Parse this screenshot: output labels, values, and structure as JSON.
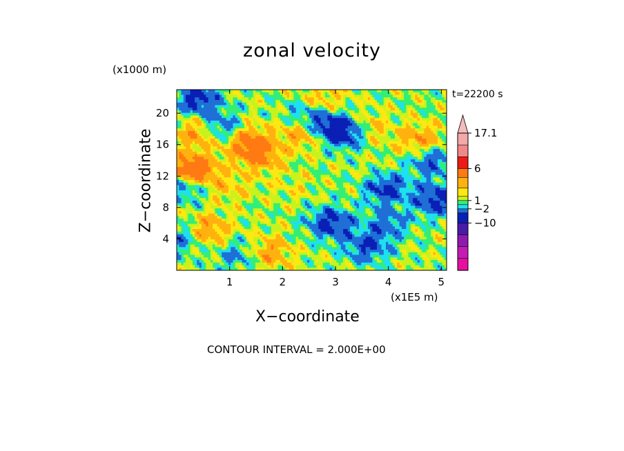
{
  "chart_data": {
    "type": "heatmap",
    "title": "zonal velocity",
    "xlabel": "X−coordinate",
    "ylabel": "Z−coordinate",
    "x_unit": "(x1E5 m)",
    "y_unit": "(x1000 m)",
    "annotation": "t=22200 s",
    "footer": "CONTOUR INTERVAL = 2.000E+00",
    "xlim": [
      0,
      5.1
    ],
    "ylim": [
      0,
      23
    ],
    "x_ticks": [
      1,
      2,
      3,
      4,
      5
    ],
    "x_tick_labels": [
      "1",
      "2",
      "3",
      "4",
      "5"
    ],
    "y_ticks": [
      4,
      8,
      12,
      16,
      20
    ],
    "y_tick_labels": [
      "4",
      "8",
      "12",
      "16",
      "20"
    ],
    "colorbar": {
      "levels": [
        -18,
        -14,
        -10,
        -6,
        -2,
        0,
        1,
        2,
        3,
        4,
        6,
        10,
        14,
        17.1
      ],
      "labels": [
        {
          "value": 17.1,
          "text": "17.1"
        },
        {
          "value": 6,
          "text": "6"
        },
        {
          "value": 1,
          "text": "1"
        },
        {
          "value": -2,
          "text": "−2"
        },
        {
          "value": -10,
          "text": "−10"
        }
      ],
      "colors": [
        "#e60fa0",
        "#c31bb3",
        "#8f1aae",
        "#4a1aa8",
        "#0a1fb5",
        "#1f6fd6",
        "#1ee0ef",
        "#33ee77",
        "#c8f21e",
        "#ffe812",
        "#ffb20f",
        "#ff7a12",
        "#ee1a14",
        "#f08888",
        "#f4a8a8"
      ]
    },
    "regions": [
      {
        "x": 0.45,
        "y": 17.5,
        "value": 7
      },
      {
        "x": 0.3,
        "y": 12.5,
        "value": 11
      },
      {
        "x": 1.3,
        "y": 16.5,
        "value": 7
      },
      {
        "x": 1.6,
        "y": 14.5,
        "value": 6
      },
      {
        "x": 2.4,
        "y": 17.5,
        "value": 6
      },
      {
        "x": 2.7,
        "y": 21.2,
        "value": 6
      },
      {
        "x": 3.55,
        "y": 18.0,
        "value": 6
      },
      {
        "x": 1.7,
        "y": 2.2,
        "value": 6
      },
      {
        "x": 0.6,
        "y": 5.0,
        "value": 6
      },
      {
        "x": 4.6,
        "y": 16.5,
        "value": 6
      },
      {
        "x": 1.0,
        "y": 10.5,
        "value": 4
      },
      {
        "x": 2.2,
        "y": 10.5,
        "value": 3
      },
      {
        "x": 3.8,
        "y": 12.0,
        "value": 3
      },
      {
        "x": 0.4,
        "y": 21.8,
        "value": -3
      },
      {
        "x": 0.8,
        "y": 18.0,
        "value": -3
      },
      {
        "x": 0.2,
        "y": 11.0,
        "value": -3
      },
      {
        "x": 2.9,
        "y": 18.2,
        "value": -3
      },
      {
        "x": 3.3,
        "y": 17.5,
        "value": -3
      },
      {
        "x": 4.9,
        "y": 9.0,
        "value": -3
      },
      {
        "x": 3.95,
        "y": 10.5,
        "value": -3
      },
      {
        "x": 2.9,
        "y": 6.0,
        "value": -3
      },
      {
        "x": 3.6,
        "y": 3.0,
        "value": -2
      },
      {
        "x": 2.5,
        "y": 20.0,
        "value": -2
      },
      {
        "x": 4.8,
        "y": 14.0,
        "value": -2
      },
      {
        "x": 0.05,
        "y": 4.0,
        "value": -1
      },
      {
        "x": 1.2,
        "y": 2.0,
        "value": -1
      },
      {
        "x": 4.0,
        "y": 6.0,
        "value": -1
      }
    ]
  }
}
